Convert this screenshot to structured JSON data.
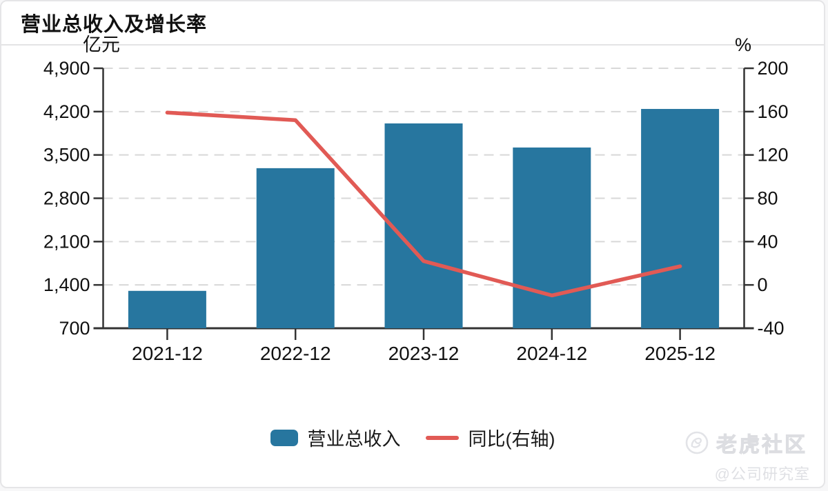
{
  "page": {
    "title": "营业总收入及增长率"
  },
  "chart_data": {
    "type": "bar",
    "note": "combo bar+line dual-axis chart",
    "categories": [
      "2021-12",
      "2022-12",
      "2023-12",
      "2024-12",
      "2025-12"
    ],
    "series": [
      {
        "name": "营业总收入",
        "type": "bar",
        "axis": "left",
        "unit": "亿元",
        "values": [
          1304,
          3286,
          4009,
          3620,
          4243
        ],
        "color": "#27769f"
      },
      {
        "name": "同比(右轴)",
        "type": "line",
        "axis": "right",
        "unit": "%",
        "values": [
          159.1,
          152.1,
          22.0,
          -9.7,
          17.2
        ],
        "color": "#e15a55"
      }
    ],
    "left_axis": {
      "label": "亿元",
      "min": 700,
      "max": 4900,
      "tick_labels": [
        "4,900",
        "4,200",
        "3,500",
        "2,800",
        "2,100",
        "1,400",
        "700"
      ],
      "tick_values": [
        4900,
        4200,
        3500,
        2800,
        2100,
        1400,
        700
      ]
    },
    "right_axis": {
      "label": "%",
      "min": -40,
      "max": 200,
      "tick_labels": [
        "200",
        "160",
        "120",
        "80",
        "40",
        "0",
        "-40"
      ],
      "tick_values": [
        200,
        160,
        120,
        80,
        40,
        0,
        -40
      ]
    },
    "grid": true,
    "legend_position": "bottom"
  },
  "legend": {
    "bar_label": "营业总收入",
    "line_label": "同比(右轴)"
  },
  "watermark": {
    "community": "老虎社区",
    "account": "@公司研究室"
  },
  "colors": {
    "bar": "#27769f",
    "line": "#e15a55",
    "grid": "#d8d8d8",
    "axis": "#333333",
    "tick_text": "#111111",
    "divider": "#e3e3e5",
    "watermark": "#e2e3e7"
  }
}
